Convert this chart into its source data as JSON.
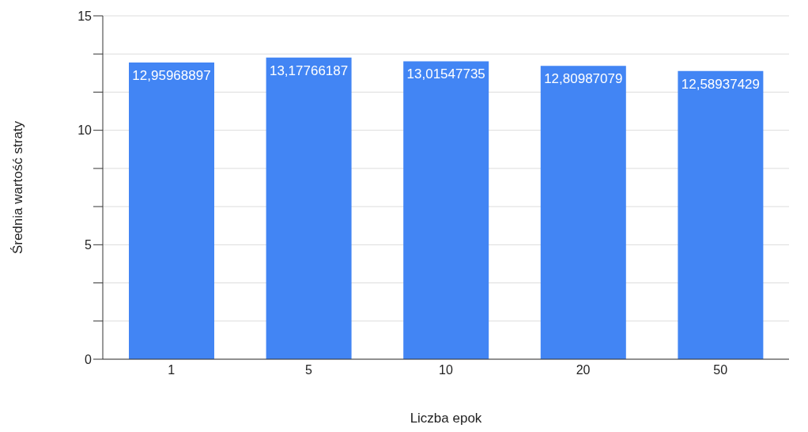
{
  "chart_data": {
    "type": "bar",
    "xlabel": "Liczba epok",
    "ylabel": "Średnia wartość straty",
    "categories": [
      "1",
      "5",
      "10",
      "20",
      "50"
    ],
    "values": [
      12.95968897,
      13.17766187,
      13.01547735,
      12.80987079,
      12.58937429
    ],
    "value_labels": [
      "12,95968897",
      "13,17766187",
      "13,01547735",
      "12,80987079",
      "12,58937429"
    ],
    "color": "#4285f4",
    "ylim": [
      0,
      15
    ],
    "yticks": [
      0,
      {
        "value": 1.667,
        "label": null
      },
      {
        "value": 3.333,
        "label": null
      },
      5,
      {
        "value": 6.667,
        "label": null
      },
      {
        "value": 8.333,
        "label": null
      },
      10,
      {
        "value": 11.667,
        "label": null
      },
      {
        "value": 13.333,
        "label": null
      },
      15
    ],
    "grid": "y"
  }
}
